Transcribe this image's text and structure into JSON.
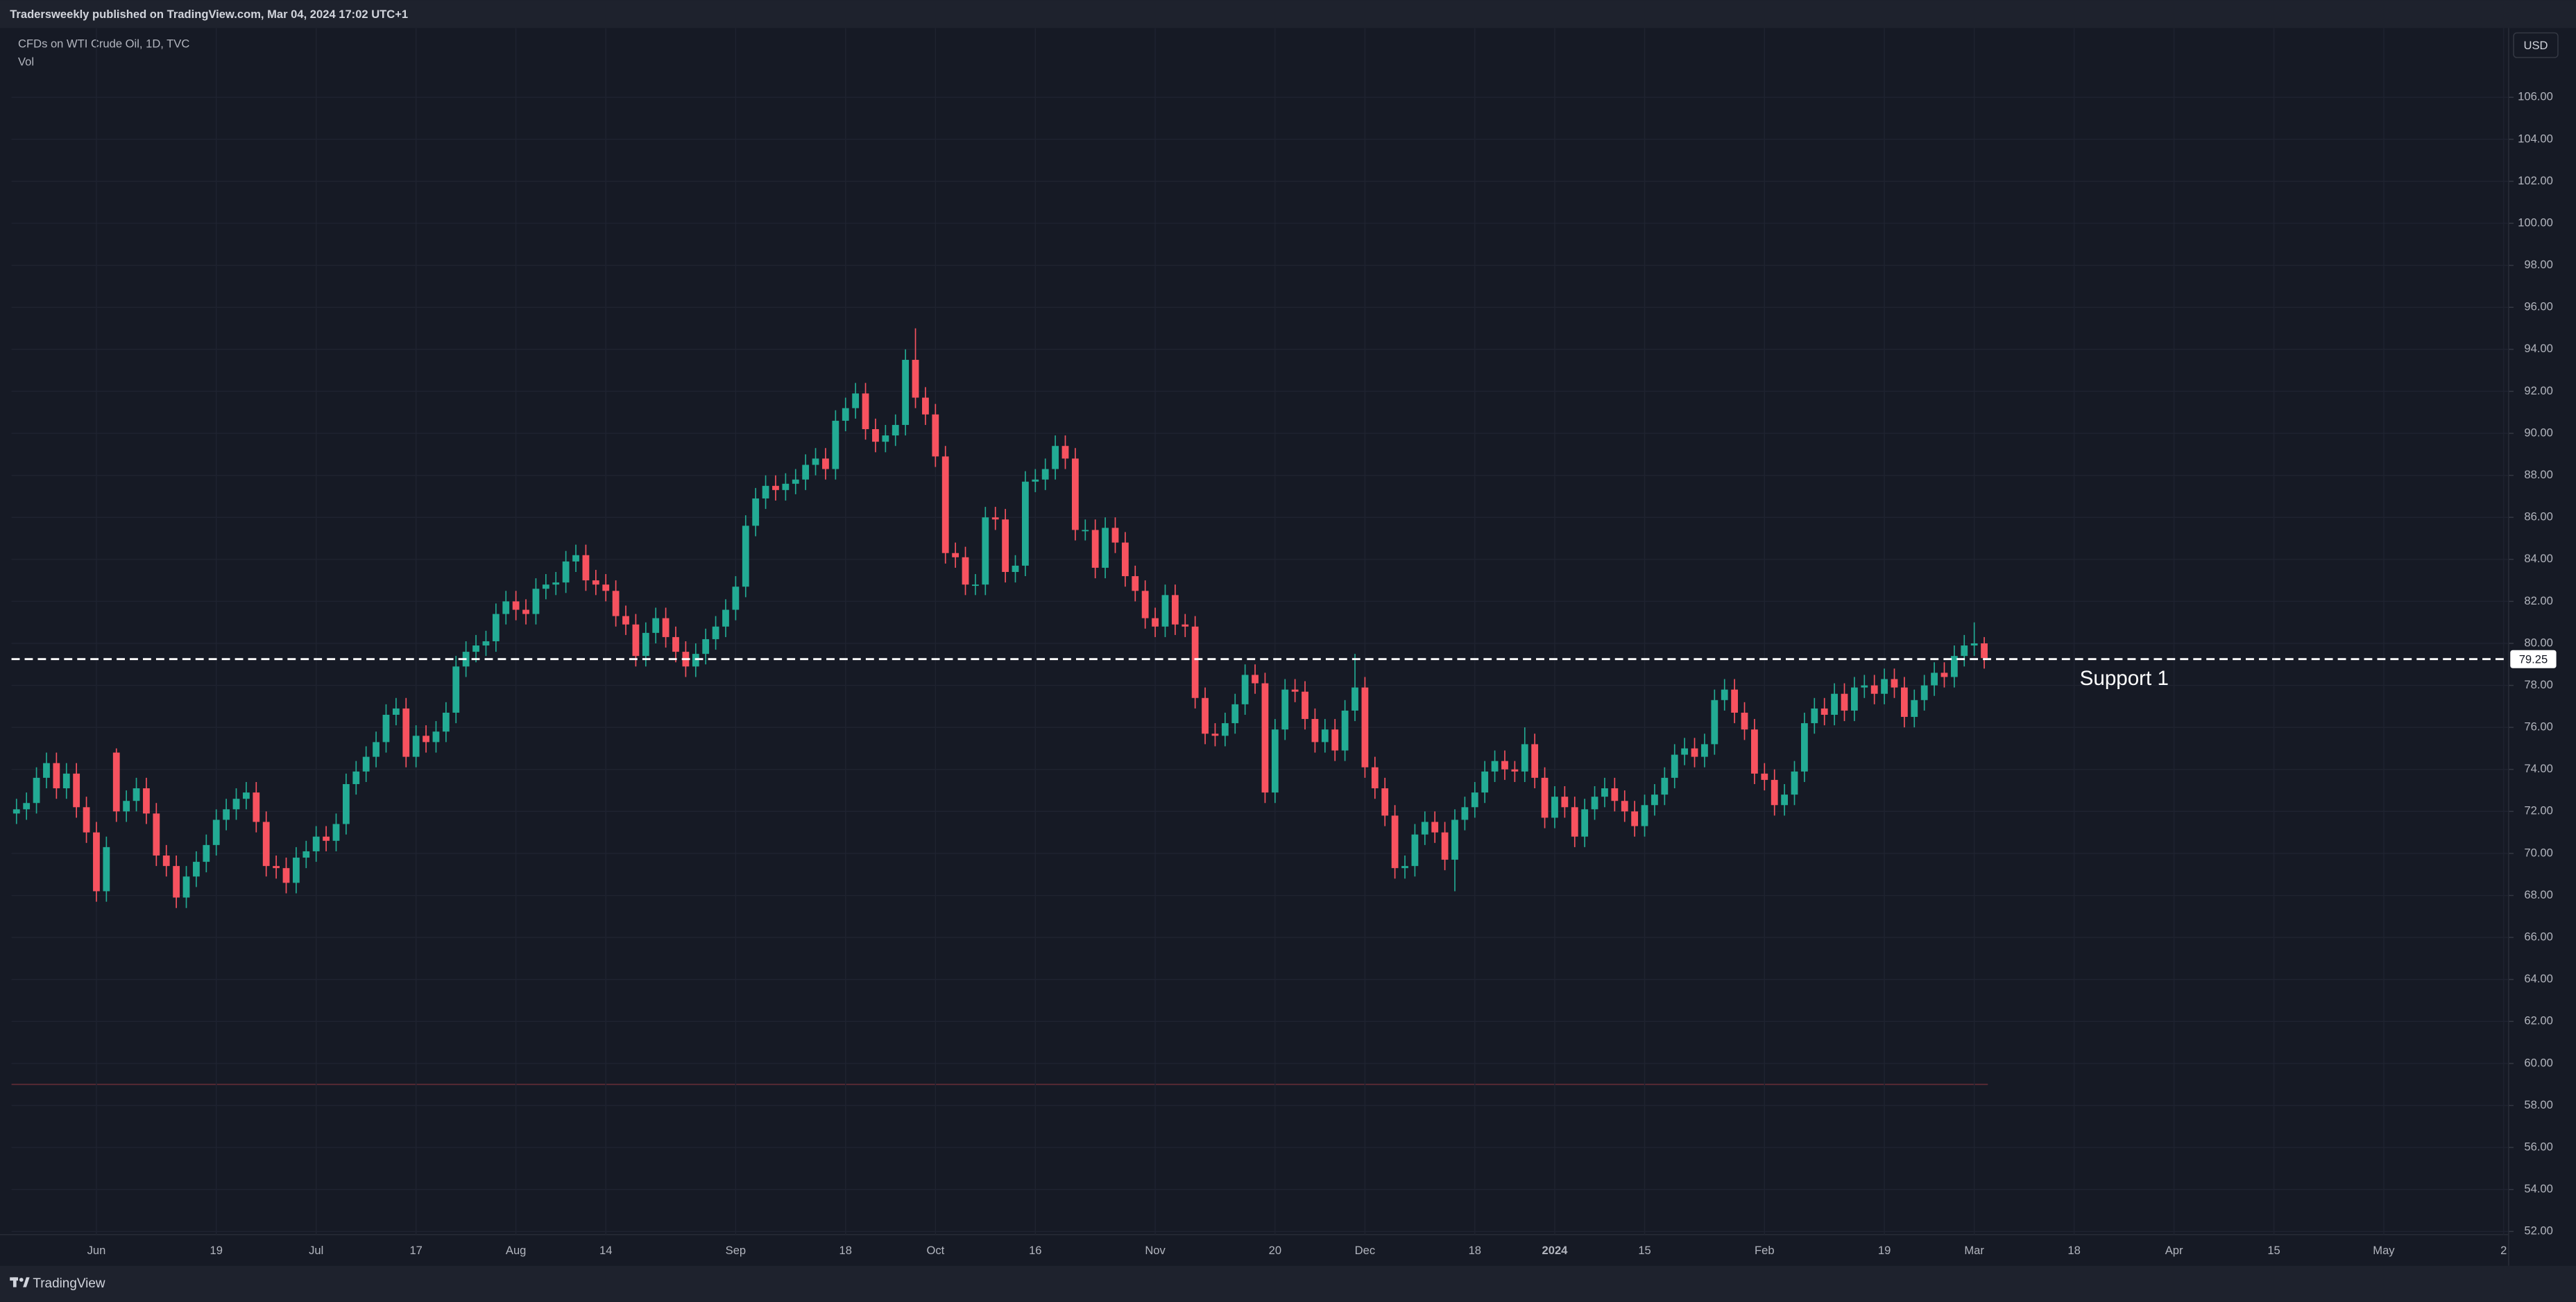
{
  "header": "Tradersweekly published on TradingView.com, Mar 04, 2024 17:02 UTC+1",
  "footer": "TradingView",
  "chart_data": {
    "type": "candlestick",
    "title": "CFDs on WTI Crude Oil, 1D, TVC",
    "subtitle": "Vol",
    "currency": "USD",
    "up_color": "#22ab94",
    "down_color": "#f7525f",
    "grid": true,
    "support": {
      "value": 79.25,
      "label": "Support 1"
    },
    "ylim": [
      51.85,
      109.3
    ],
    "yticks": [
      {
        "value": 52,
        "label": "52.00"
      },
      {
        "value": 54,
        "label": "54.00"
      },
      {
        "value": 56,
        "label": "56.00"
      },
      {
        "value": 58,
        "label": "58.00"
      },
      {
        "value": 60,
        "label": "60.00"
      },
      {
        "value": 62,
        "label": "62.00"
      },
      {
        "value": 64,
        "label": "64.00"
      },
      {
        "value": 66,
        "label": "66.00"
      },
      {
        "value": 68,
        "label": "68.00"
      },
      {
        "value": 70,
        "label": "70.00"
      },
      {
        "value": 72,
        "label": "72.00"
      },
      {
        "value": 74,
        "label": "74.00"
      },
      {
        "value": 76,
        "label": "76.00"
      },
      {
        "value": 78,
        "label": "78.00"
      },
      {
        "value": 80,
        "label": "80.00"
      },
      {
        "value": 82,
        "label": "82.00"
      },
      {
        "value": 84,
        "label": "84.00"
      },
      {
        "value": 86,
        "label": "86.00"
      },
      {
        "value": 88,
        "label": "88.00"
      },
      {
        "value": 90,
        "label": "90.00"
      },
      {
        "value": 92,
        "label": "92.00"
      },
      {
        "value": 94,
        "label": "94.00"
      },
      {
        "value": 96,
        "label": "96.00"
      },
      {
        "value": 98,
        "label": "98.00"
      },
      {
        "value": 100,
        "label": "100.00"
      },
      {
        "value": 102,
        "label": "102.00"
      },
      {
        "value": 104,
        "label": "104.00"
      },
      {
        "value": 106,
        "label": "106.00"
      }
    ],
    "categories": [
      null,
      null,
      null,
      null,
      null,
      null,
      null,
      null,
      "Jun",
      null,
      null,
      null,
      null,
      null,
      null,
      null,
      null,
      null,
      null,
      null,
      "19",
      null,
      null,
      null,
      null,
      null,
      null,
      null,
      null,
      null,
      "Jul",
      null,
      null,
      null,
      null,
      null,
      null,
      null,
      null,
      null,
      "17",
      null,
      null,
      null,
      null,
      null,
      null,
      null,
      null,
      null,
      "Aug",
      null,
      null,
      null,
      null,
      null,
      null,
      null,
      null,
      "14",
      null,
      null,
      null,
      null,
      null,
      null,
      null,
      null,
      null,
      null,
      null,
      null,
      "Sep",
      null,
      null,
      null,
      null,
      null,
      null,
      null,
      null,
      null,
      null,
      "18",
      null,
      null,
      null,
      null,
      null,
      null,
      null,
      null,
      "Oct",
      null,
      null,
      null,
      null,
      null,
      null,
      null,
      null,
      null,
      "16",
      null,
      null,
      null,
      null,
      null,
      null,
      null,
      null,
      null,
      null,
      null,
      "Nov",
      null,
      null,
      null,
      null,
      null,
      null,
      null,
      null,
      null,
      null,
      null,
      "20",
      null,
      null,
      null,
      null,
      null,
      null,
      null,
      null,
      "Dec",
      null,
      null,
      null,
      null,
      null,
      null,
      null,
      null,
      null,
      null,
      "18",
      null,
      null,
      null,
      null,
      null,
      null,
      null,
      "2024",
      null,
      null,
      null,
      null,
      null,
      null,
      null,
      null,
      "15",
      null,
      null,
      null,
      null,
      null,
      null,
      null,
      null,
      null,
      null,
      null,
      "Feb",
      null,
      null,
      null,
      null,
      null,
      null,
      null,
      null,
      null,
      null,
      null,
      "19",
      null,
      null,
      null,
      null,
      null,
      null,
      null,
      null,
      "Mar",
      null,
      null,
      null,
      null,
      null,
      null,
      null,
      null,
      null,
      "18",
      null,
      null,
      null,
      null,
      null,
      null,
      null,
      null,
      null,
      "Apr",
      null,
      null,
      null,
      null,
      null,
      null,
      null,
      null,
      null,
      "15",
      null,
      null,
      null,
      null,
      null,
      null,
      null,
      null,
      null,
      null,
      "May",
      null,
      null,
      null,
      null,
      null,
      null,
      null,
      null,
      null,
      null,
      null,
      "2"
    ],
    "open": [
      71.9,
      72.1,
      72.4,
      73.6,
      74.3,
      73.1,
      73.8,
      72.2,
      71.0,
      68.2,
      74.8,
      72.0,
      72.5,
      73.1,
      71.9,
      69.9,
      69.4,
      67.9,
      68.9,
      69.6,
      70.4,
      71.6,
      72.1,
      72.6,
      72.9,
      71.5,
      69.4,
      69.3,
      68.6,
      69.8,
      70.1,
      70.8,
      70.6,
      71.4,
      73.3,
      73.9,
      74.6,
      75.3,
      76.6,
      76.9,
      74.6,
      75.6,
      75.3,
      75.8,
      76.7,
      78.9,
      79.6,
      79.9,
      80.1,
      81.4,
      82.0,
      81.6,
      81.4,
      82.6,
      82.8,
      82.9,
      83.9,
      84.2,
      83.0,
      82.8,
      82.5,
      81.3,
      80.9,
      79.4,
      80.5,
      81.2,
      80.3,
      79.6,
      78.9,
      79.5,
      80.2,
      80.8,
      81.6,
      82.7,
      85.6,
      86.9,
      87.5,
      87.3,
      87.6,
      87.8,
      88.5,
      88.8,
      88.3,
      90.6,
      91.2,
      91.9,
      90.2,
      89.6,
      89.9,
      90.4,
      93.5,
      91.7,
      90.9,
      88.9,
      84.3,
      84.1,
      82.8,
      82.8,
      86.0,
      85.9,
      83.4,
      83.7,
      87.7,
      87.8,
      88.3,
      89.4,
      88.8,
      85.4,
      85.4,
      83.6,
      85.5,
      84.8,
      83.2,
      82.5,
      81.2,
      80.8,
      82.3,
      80.9,
      80.8,
      77.4,
      75.7,
      75.6,
      76.2,
      77.1,
      78.5,
      78.1,
      72.9,
      75.9,
      77.8,
      77.7,
      76.4,
      75.3,
      75.9,
      74.9,
      76.8,
      77.9,
      74.1,
      73.1,
      71.8,
      69.3,
      69.4,
      70.9,
      71.5,
      71.0,
      69.7,
      71.6,
      72.2,
      72.9,
      73.9,
      74.4,
      74.0,
      73.9,
      75.2,
      73.6,
      71.7,
      72.7,
      72.2,
      70.8,
      72.1,
      72.7,
      73.1,
      72.5,
      72.0,
      71.3,
      72.3,
      72.8,
      73.6,
      74.7,
      75.0,
      74.6,
      75.2,
      77.3,
      77.8,
      76.7,
      75.9,
      73.8,
      73.5,
      72.3,
      72.8,
      73.9,
      76.2,
      76.9,
      76.6,
      77.6,
      76.8,
      77.9,
      78.0,
      77.6,
      78.3,
      77.9,
      76.5,
      77.3,
      78.0,
      78.6,
      78.4,
      79.4,
      79.9,
      80.0,
      null,
      null,
      null,
      null,
      null,
      null,
      null,
      null,
      null,
      null,
      null,
      null,
      null,
      null,
      null,
      null,
      null,
      null,
      null,
      null,
      null,
      null,
      null,
      null,
      null,
      null,
      null,
      null,
      null,
      null,
      null,
      null,
      null,
      null,
      null,
      null,
      null,
      null,
      null,
      null,
      null,
      null,
      null,
      null,
      null,
      null,
      null,
      null,
      null,
      null,
      null,
      null
    ],
    "high": [
      72.6,
      72.9,
      74.1,
      74.8,
      74.8,
      74.3,
      74.3,
      72.7,
      71.5,
      70.8,
      75.0,
      73.0,
      73.6,
      73.6,
      72.4,
      70.4,
      69.9,
      69.4,
      70.1,
      70.9,
      72.1,
      72.6,
      73.1,
      73.4,
      73.4,
      72.0,
      69.9,
      69.8,
      70.3,
      70.6,
      71.3,
      71.3,
      71.9,
      73.8,
      74.4,
      75.1,
      75.8,
      77.1,
      77.4,
      77.4,
      76.1,
      76.1,
      76.3,
      77.2,
      79.4,
      80.1,
      80.4,
      80.6,
      81.9,
      82.5,
      82.5,
      82.1,
      83.1,
      83.3,
      83.4,
      84.4,
      84.7,
      84.7,
      83.5,
      83.3,
      83.0,
      81.8,
      81.4,
      81.0,
      81.7,
      81.7,
      80.8,
      80.1,
      80.0,
      80.7,
      81.3,
      82.1,
      83.2,
      86.1,
      87.4,
      88.0,
      88.0,
      88.1,
      88.3,
      89.0,
      89.3,
      89.3,
      91.1,
      91.7,
      92.4,
      92.4,
      90.7,
      90.4,
      90.9,
      94.0,
      95.0,
      92.2,
      91.4,
      89.4,
      84.8,
      84.6,
      83.3,
      86.5,
      86.5,
      86.4,
      84.2,
      88.2,
      88.3,
      88.8,
      89.9,
      89.9,
      89.3,
      85.9,
      85.9,
      86.0,
      86.0,
      85.3,
      83.7,
      83.0,
      81.7,
      82.8,
      82.8,
      81.4,
      81.3,
      77.9,
      76.2,
      76.7,
      77.6,
      79.0,
      79.0,
      78.6,
      76.4,
      78.3,
      78.3,
      78.2,
      76.9,
      76.4,
      76.4,
      77.3,
      79.5,
      78.4,
      74.6,
      73.6,
      72.3,
      69.9,
      71.4,
      72.0,
      72.0,
      71.5,
      72.1,
      72.7,
      73.4,
      74.4,
      74.9,
      74.9,
      74.4,
      76.0,
      75.7,
      74.1,
      73.2,
      73.2,
      72.7,
      72.6,
      73.2,
      73.6,
      73.6,
      73.0,
      72.5,
      72.8,
      73.3,
      74.1,
      75.2,
      75.5,
      75.5,
      75.7,
      77.8,
      78.3,
      78.3,
      77.2,
      76.4,
      74.3,
      74.0,
      73.3,
      74.4,
      76.7,
      77.4,
      77.4,
      78.1,
      78.1,
      78.4,
      78.5,
      78.5,
      78.8,
      78.8,
      78.4,
      77.8,
      78.5,
      79.1,
      79.1,
      79.9,
      80.4,
      81.0,
      80.3,
      null,
      null,
      null,
      null,
      null,
      null,
      null,
      null,
      null,
      null,
      null,
      null,
      null,
      null,
      null,
      null,
      null,
      null,
      null,
      null,
      null,
      null,
      null,
      null,
      null,
      null,
      null,
      null,
      null,
      null,
      null,
      null,
      null,
      null,
      null,
      null,
      null,
      null,
      null,
      null,
      null,
      null,
      null,
      null,
      null,
      null,
      null,
      null,
      null,
      null,
      null,
      null
    ],
    "low": [
      71.4,
      71.6,
      71.9,
      73.1,
      72.6,
      72.6,
      71.7,
      70.5,
      67.7,
      67.7,
      71.5,
      71.5,
      72.0,
      71.4,
      69.4,
      68.9,
      67.4,
      67.4,
      68.4,
      69.1,
      69.9,
      71.1,
      71.6,
      72.1,
      71.0,
      68.9,
      68.8,
      68.1,
      68.1,
      69.3,
      69.6,
      70.1,
      70.1,
      70.9,
      72.8,
      73.4,
      74.1,
      74.8,
      76.1,
      74.1,
      74.1,
      74.8,
      74.8,
      75.3,
      76.2,
      78.4,
      79.1,
      79.4,
      79.6,
      80.9,
      81.1,
      80.9,
      80.9,
      82.1,
      82.3,
      82.4,
      83.4,
      82.5,
      82.3,
      82.0,
      80.8,
      80.4,
      78.9,
      78.9,
      80.0,
      79.8,
      79.1,
      78.4,
      78.4,
      79.0,
      79.7,
      80.3,
      81.1,
      82.2,
      85.1,
      86.4,
      86.8,
      86.8,
      87.1,
      87.3,
      88.0,
      87.8,
      87.8,
      90.1,
      90.7,
      89.7,
      89.1,
      89.1,
      89.4,
      89.9,
      91.2,
      90.4,
      88.4,
      83.8,
      83.6,
      82.3,
      82.3,
      82.3,
      85.4,
      82.9,
      82.9,
      83.2,
      87.2,
      87.3,
      87.8,
      88.3,
      84.9,
      84.9,
      83.1,
      83.1,
      84.3,
      82.7,
      82.0,
      80.7,
      80.3,
      80.3,
      80.4,
      80.3,
      76.9,
      75.2,
      75.1,
      75.1,
      75.7,
      76.6,
      77.6,
      72.4,
      72.4,
      75.4,
      77.2,
      75.9,
      74.8,
      74.8,
      74.4,
      74.4,
      76.3,
      73.6,
      72.6,
      71.3,
      68.8,
      68.8,
      68.9,
      70.4,
      70.5,
      69.2,
      68.2,
      71.1,
      71.7,
      72.4,
      73.4,
      73.5,
      73.4,
      73.4,
      73.1,
      71.2,
      71.2,
      71.7,
      70.3,
      70.3,
      71.6,
      72.2,
      72.0,
      71.5,
      70.8,
      70.8,
      71.8,
      72.3,
      73.1,
      74.2,
      74.1,
      74.1,
      74.7,
      76.8,
      76.2,
      75.4,
      73.3,
      73.0,
      71.8,
      71.8,
      72.3,
      73.4,
      75.7,
      76.1,
      76.1,
      76.3,
      76.3,
      77.4,
      77.1,
      77.1,
      77.4,
      76.0,
      76.0,
      76.8,
      77.5,
      77.9,
      77.9,
      78.9,
      79.4,
      78.8,
      null,
      null,
      null,
      null,
      null,
      null,
      null,
      null,
      null,
      null,
      null,
      null,
      null,
      null,
      null,
      null,
      null,
      null,
      null,
      null,
      null,
      null,
      null,
      null,
      null,
      null,
      null,
      null,
      null,
      null,
      null,
      null,
      null,
      null,
      null,
      null,
      null,
      null,
      null,
      null,
      null,
      null,
      null,
      null,
      null,
      null,
      null,
      null,
      null,
      null,
      null,
      null
    ],
    "close": [
      72.1,
      72.4,
      73.6,
      74.3,
      73.1,
      73.8,
      72.2,
      71.0,
      68.2,
      70.3,
      72.0,
      72.5,
      73.1,
      71.9,
      69.9,
      69.4,
      67.9,
      68.9,
      69.6,
      70.4,
      71.6,
      72.1,
      72.6,
      72.9,
      71.5,
      69.4,
      69.3,
      68.6,
      69.8,
      70.1,
      70.8,
      70.6,
      71.4,
      73.3,
      73.9,
      74.6,
      75.3,
      76.6,
      76.9,
      74.6,
      75.6,
      75.3,
      75.8,
      76.7,
      78.9,
      79.6,
      79.9,
      80.1,
      81.4,
      82.0,
      81.6,
      81.4,
      82.6,
      82.8,
      82.9,
      83.9,
      84.2,
      83.0,
      82.8,
      82.5,
      81.3,
      80.9,
      79.4,
      80.5,
      81.2,
      80.3,
      79.6,
      78.9,
      79.5,
      80.2,
      80.8,
      81.6,
      82.7,
      85.6,
      86.9,
      87.5,
      87.3,
      87.6,
      87.8,
      88.5,
      88.8,
      88.3,
      90.6,
      91.2,
      91.9,
      90.2,
      89.6,
      89.9,
      90.4,
      93.5,
      91.7,
      90.9,
      88.9,
      84.3,
      84.1,
      82.8,
      82.8,
      86.0,
      85.9,
      83.4,
      83.7,
      87.7,
      87.8,
      88.3,
      89.4,
      88.8,
      85.4,
      85.4,
      83.6,
      85.5,
      84.8,
      83.2,
      82.5,
      81.2,
      80.8,
      82.3,
      80.9,
      80.8,
      77.4,
      75.7,
      75.6,
      76.2,
      77.1,
      78.5,
      78.1,
      72.9,
      75.9,
      77.8,
      77.7,
      76.4,
      75.3,
      75.9,
      74.9,
      76.8,
      77.9,
      74.1,
      73.1,
      71.8,
      69.3,
      69.4,
      70.9,
      71.5,
      71.0,
      69.7,
      71.6,
      72.2,
      72.9,
      73.9,
      74.4,
      74.0,
      73.9,
      75.2,
      73.6,
      71.7,
      72.7,
      72.2,
      70.8,
      72.1,
      72.7,
      73.1,
      72.5,
      72.0,
      71.3,
      72.3,
      72.8,
      73.6,
      74.7,
      75.0,
      74.6,
      75.2,
      77.3,
      77.8,
      76.7,
      75.9,
      73.8,
      73.5,
      72.3,
      72.8,
      73.9,
      76.2,
      76.9,
      76.6,
      77.6,
      76.8,
      77.9,
      78.0,
      77.6,
      78.3,
      77.9,
      76.5,
      77.3,
      78.0,
      78.6,
      78.4,
      79.4,
      79.9,
      80.0,
      79.3,
      null,
      null,
      null,
      null,
      null,
      null,
      null,
      null,
      null,
      null,
      null,
      null,
      null,
      null,
      null,
      null,
      null,
      null,
      null,
      null,
      null,
      null,
      null,
      null,
      null,
      null,
      null,
      null,
      null,
      null,
      null,
      null,
      null,
      null,
      null,
      null,
      null,
      null,
      null,
      null,
      null,
      null,
      null,
      null,
      null,
      null,
      null,
      null,
      null,
      null,
      null,
      null
    ]
  }
}
